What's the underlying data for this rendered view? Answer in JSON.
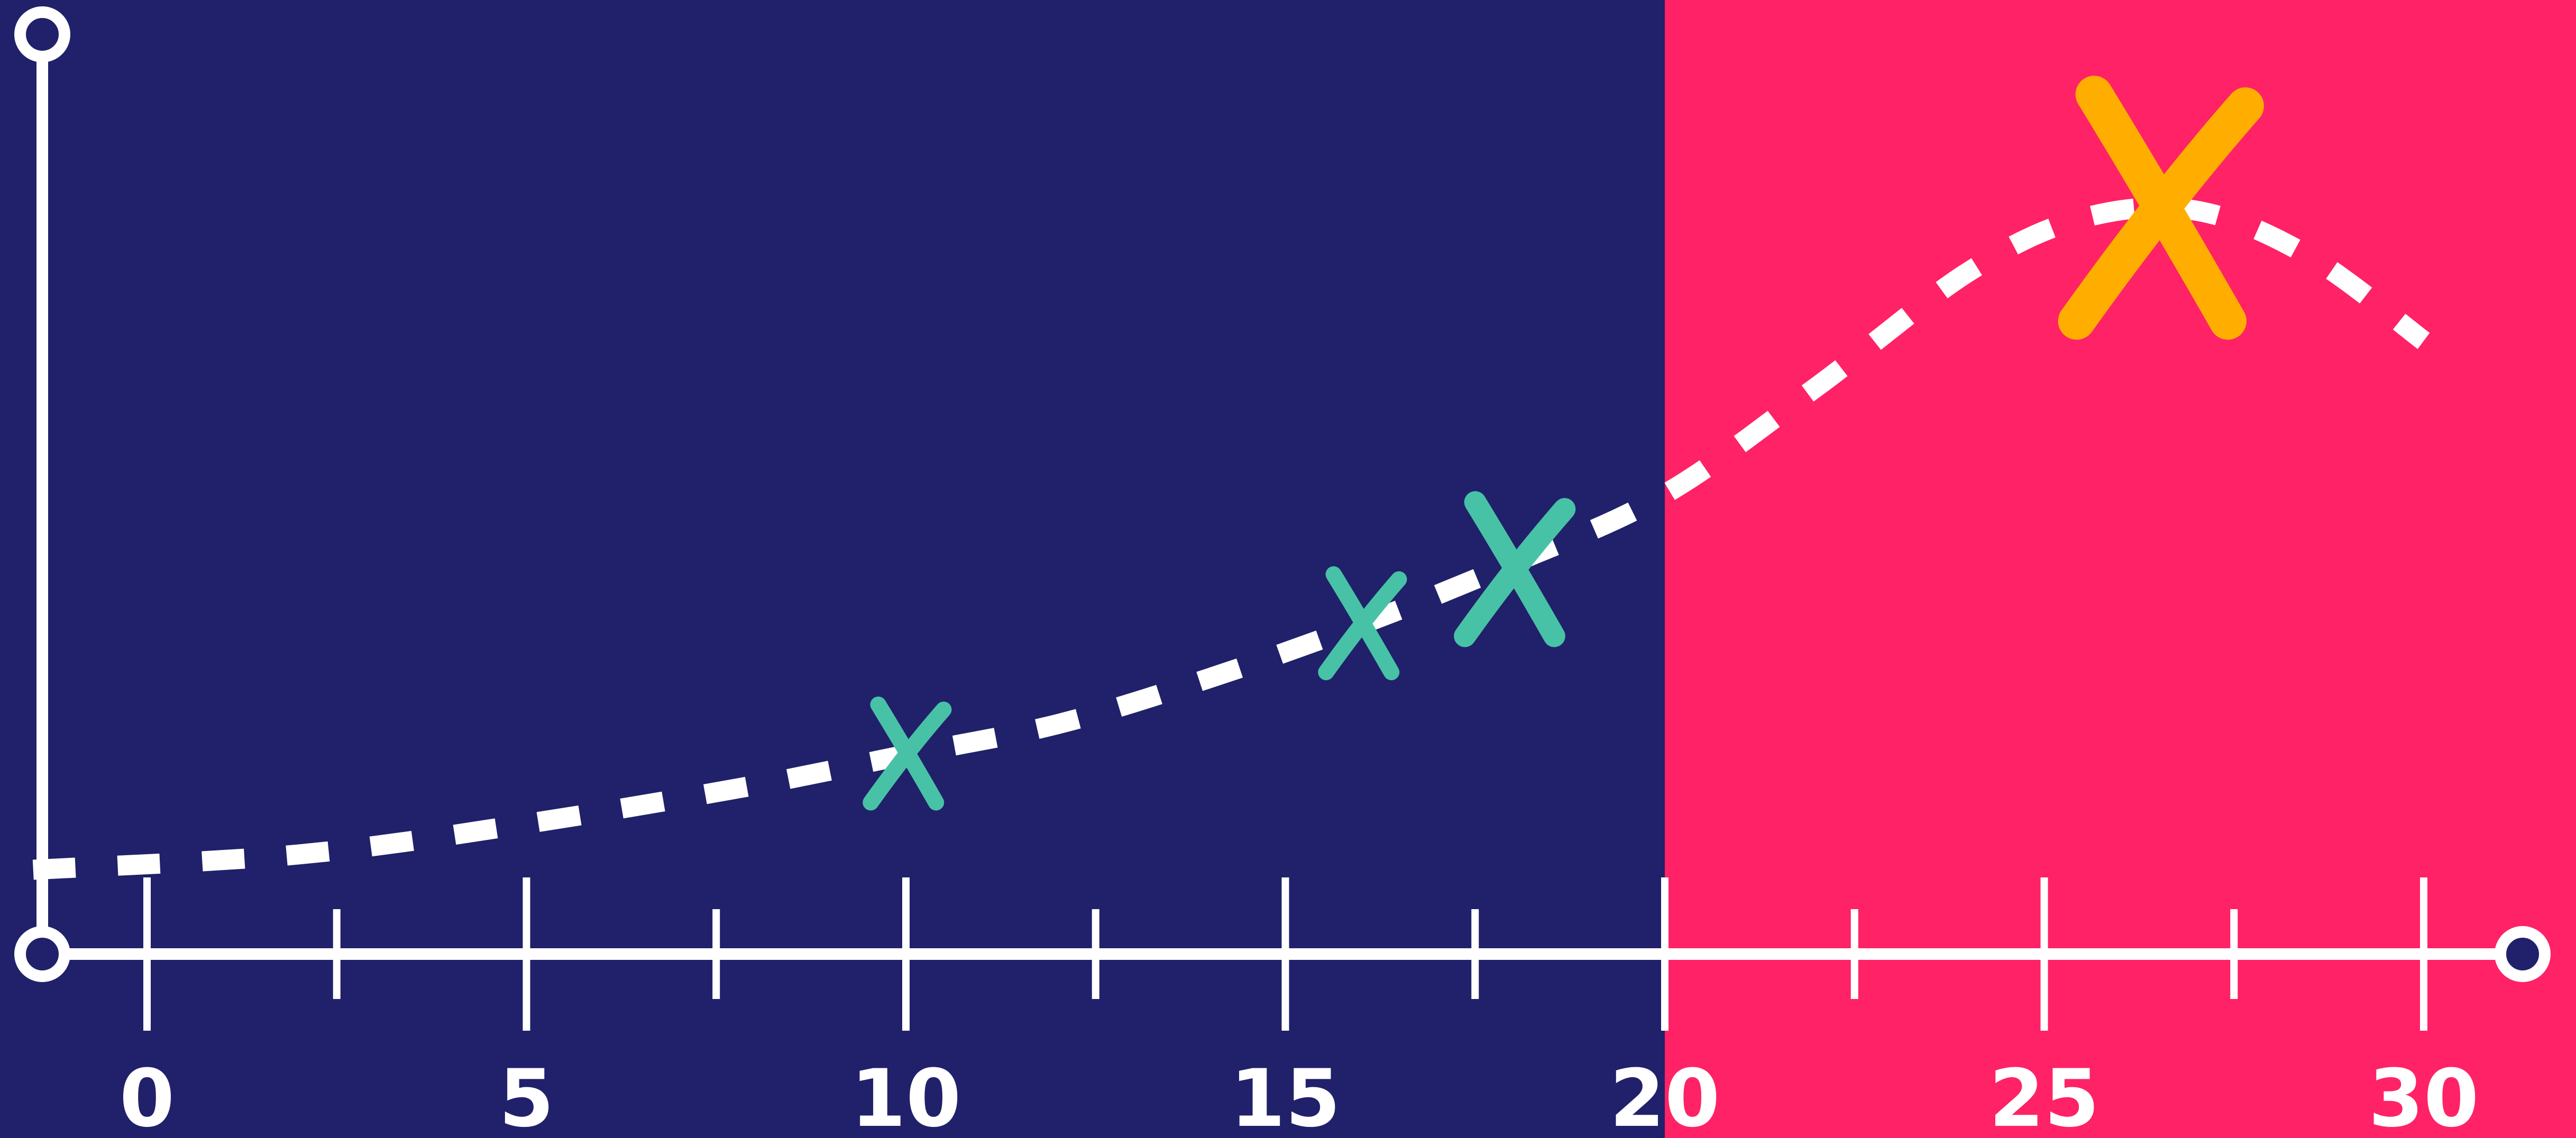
{
  "chart_data": {
    "type": "scatter",
    "title": "",
    "xlabel": "",
    "ylabel": "",
    "xlim": [
      -3,
      32
    ],
    "ylim": [
      0,
      12
    ],
    "x_ticks_major": [
      0,
      5,
      10,
      15,
      20,
      25,
      30
    ],
    "x_tick_labels": [
      "0",
      "5",
      "10",
      "15",
      "20",
      "25",
      "30"
    ],
    "x_ticks_minor": [
      2.5,
      7.5,
      12.5,
      17.5,
      22.5,
      27.5
    ],
    "regions": [
      {
        "x_from": -3,
        "x_to": 20,
        "color": "#20216A"
      },
      {
        "x_from": 20,
        "x_to": 32,
        "color": "#FF2266"
      }
    ],
    "trend_line": {
      "style": "dashed",
      "color": "#FFFFFF",
      "x": [
        -1.5,
        2,
        5,
        8,
        10,
        12,
        14,
        16,
        18,
        20,
        22,
        24,
        25.5,
        27,
        28.5,
        30
      ],
      "y": [
        1.1,
        1.3,
        1.7,
        2.2,
        2.6,
        3.0,
        3.6,
        4.3,
        5.1,
        6.0,
        7.4,
        8.9,
        9.6,
        9.7,
        9.1,
        8.0
      ]
    },
    "series": [
      {
        "color": "#48C2A6",
        "points": [
          {
            "x": 10,
            "y": 2.6,
            "size": "small"
          },
          {
            "x": 16,
            "y": 4.3,
            "size": "small"
          },
          {
            "x": 18,
            "y": 5.0,
            "size": "medium"
          }
        ]
      },
      {
        "color": "#FFAE00",
        "points": [
          {
            "x": 26.5,
            "y": 9.7,
            "size": "large"
          }
        ]
      }
    ]
  }
}
